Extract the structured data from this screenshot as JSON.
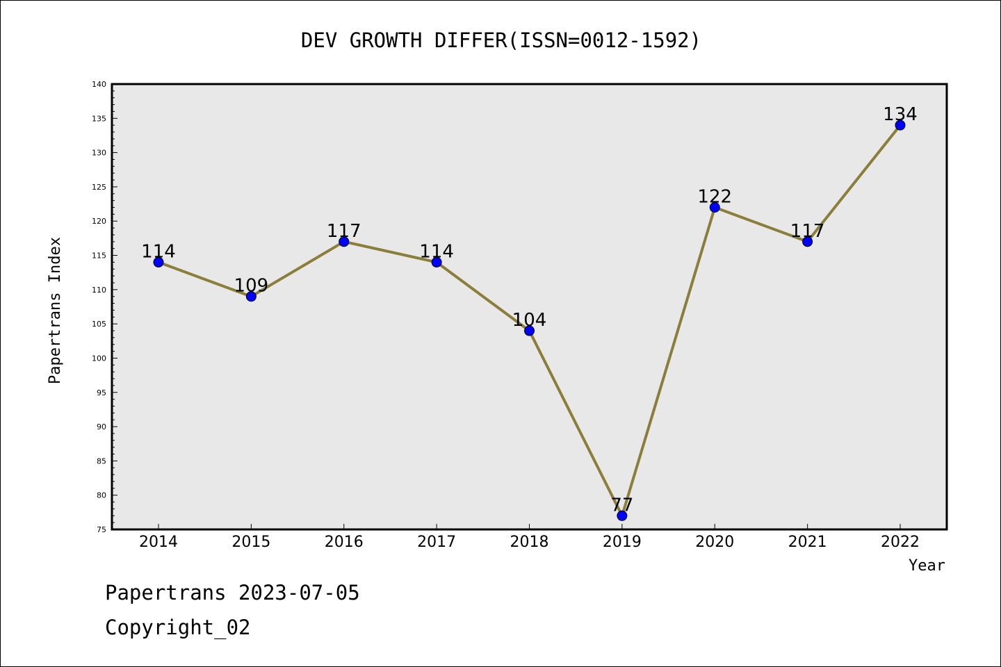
{
  "chart_data": {
    "type": "line",
    "title": "DEV GROWTH DIFFER(ISSN=0012-1592)",
    "xlabel": "Year",
    "ylabel": "Papertrans Index",
    "categories": [
      "2014",
      "2015",
      "2016",
      "2017",
      "2018",
      "2019",
      "2020",
      "2021",
      "2022"
    ],
    "series": [
      {
        "values": [
          114,
          109,
          117,
          114,
          104,
          77,
          122,
          117,
          134
        ],
        "line_color": "#8b7d3a",
        "marker_color": "#0000ff"
      }
    ],
    "data_labels": [
      "114",
      "109",
      "117",
      "114",
      "104",
      "77",
      "122",
      "117",
      "134"
    ],
    "ylim": [
      75,
      140
    ],
    "yticks": [
      "75",
      "80",
      "85",
      "90",
      "95",
      "100",
      "105",
      "110",
      "115",
      "120",
      "125",
      "130",
      "135",
      "140"
    ],
    "plot_background": "#e8e8e8",
    "grid": false,
    "legend": "none"
  },
  "footer": {
    "date_text": "Papertrans 2023-07-05",
    "copyright_text": "Copyright_02"
  }
}
